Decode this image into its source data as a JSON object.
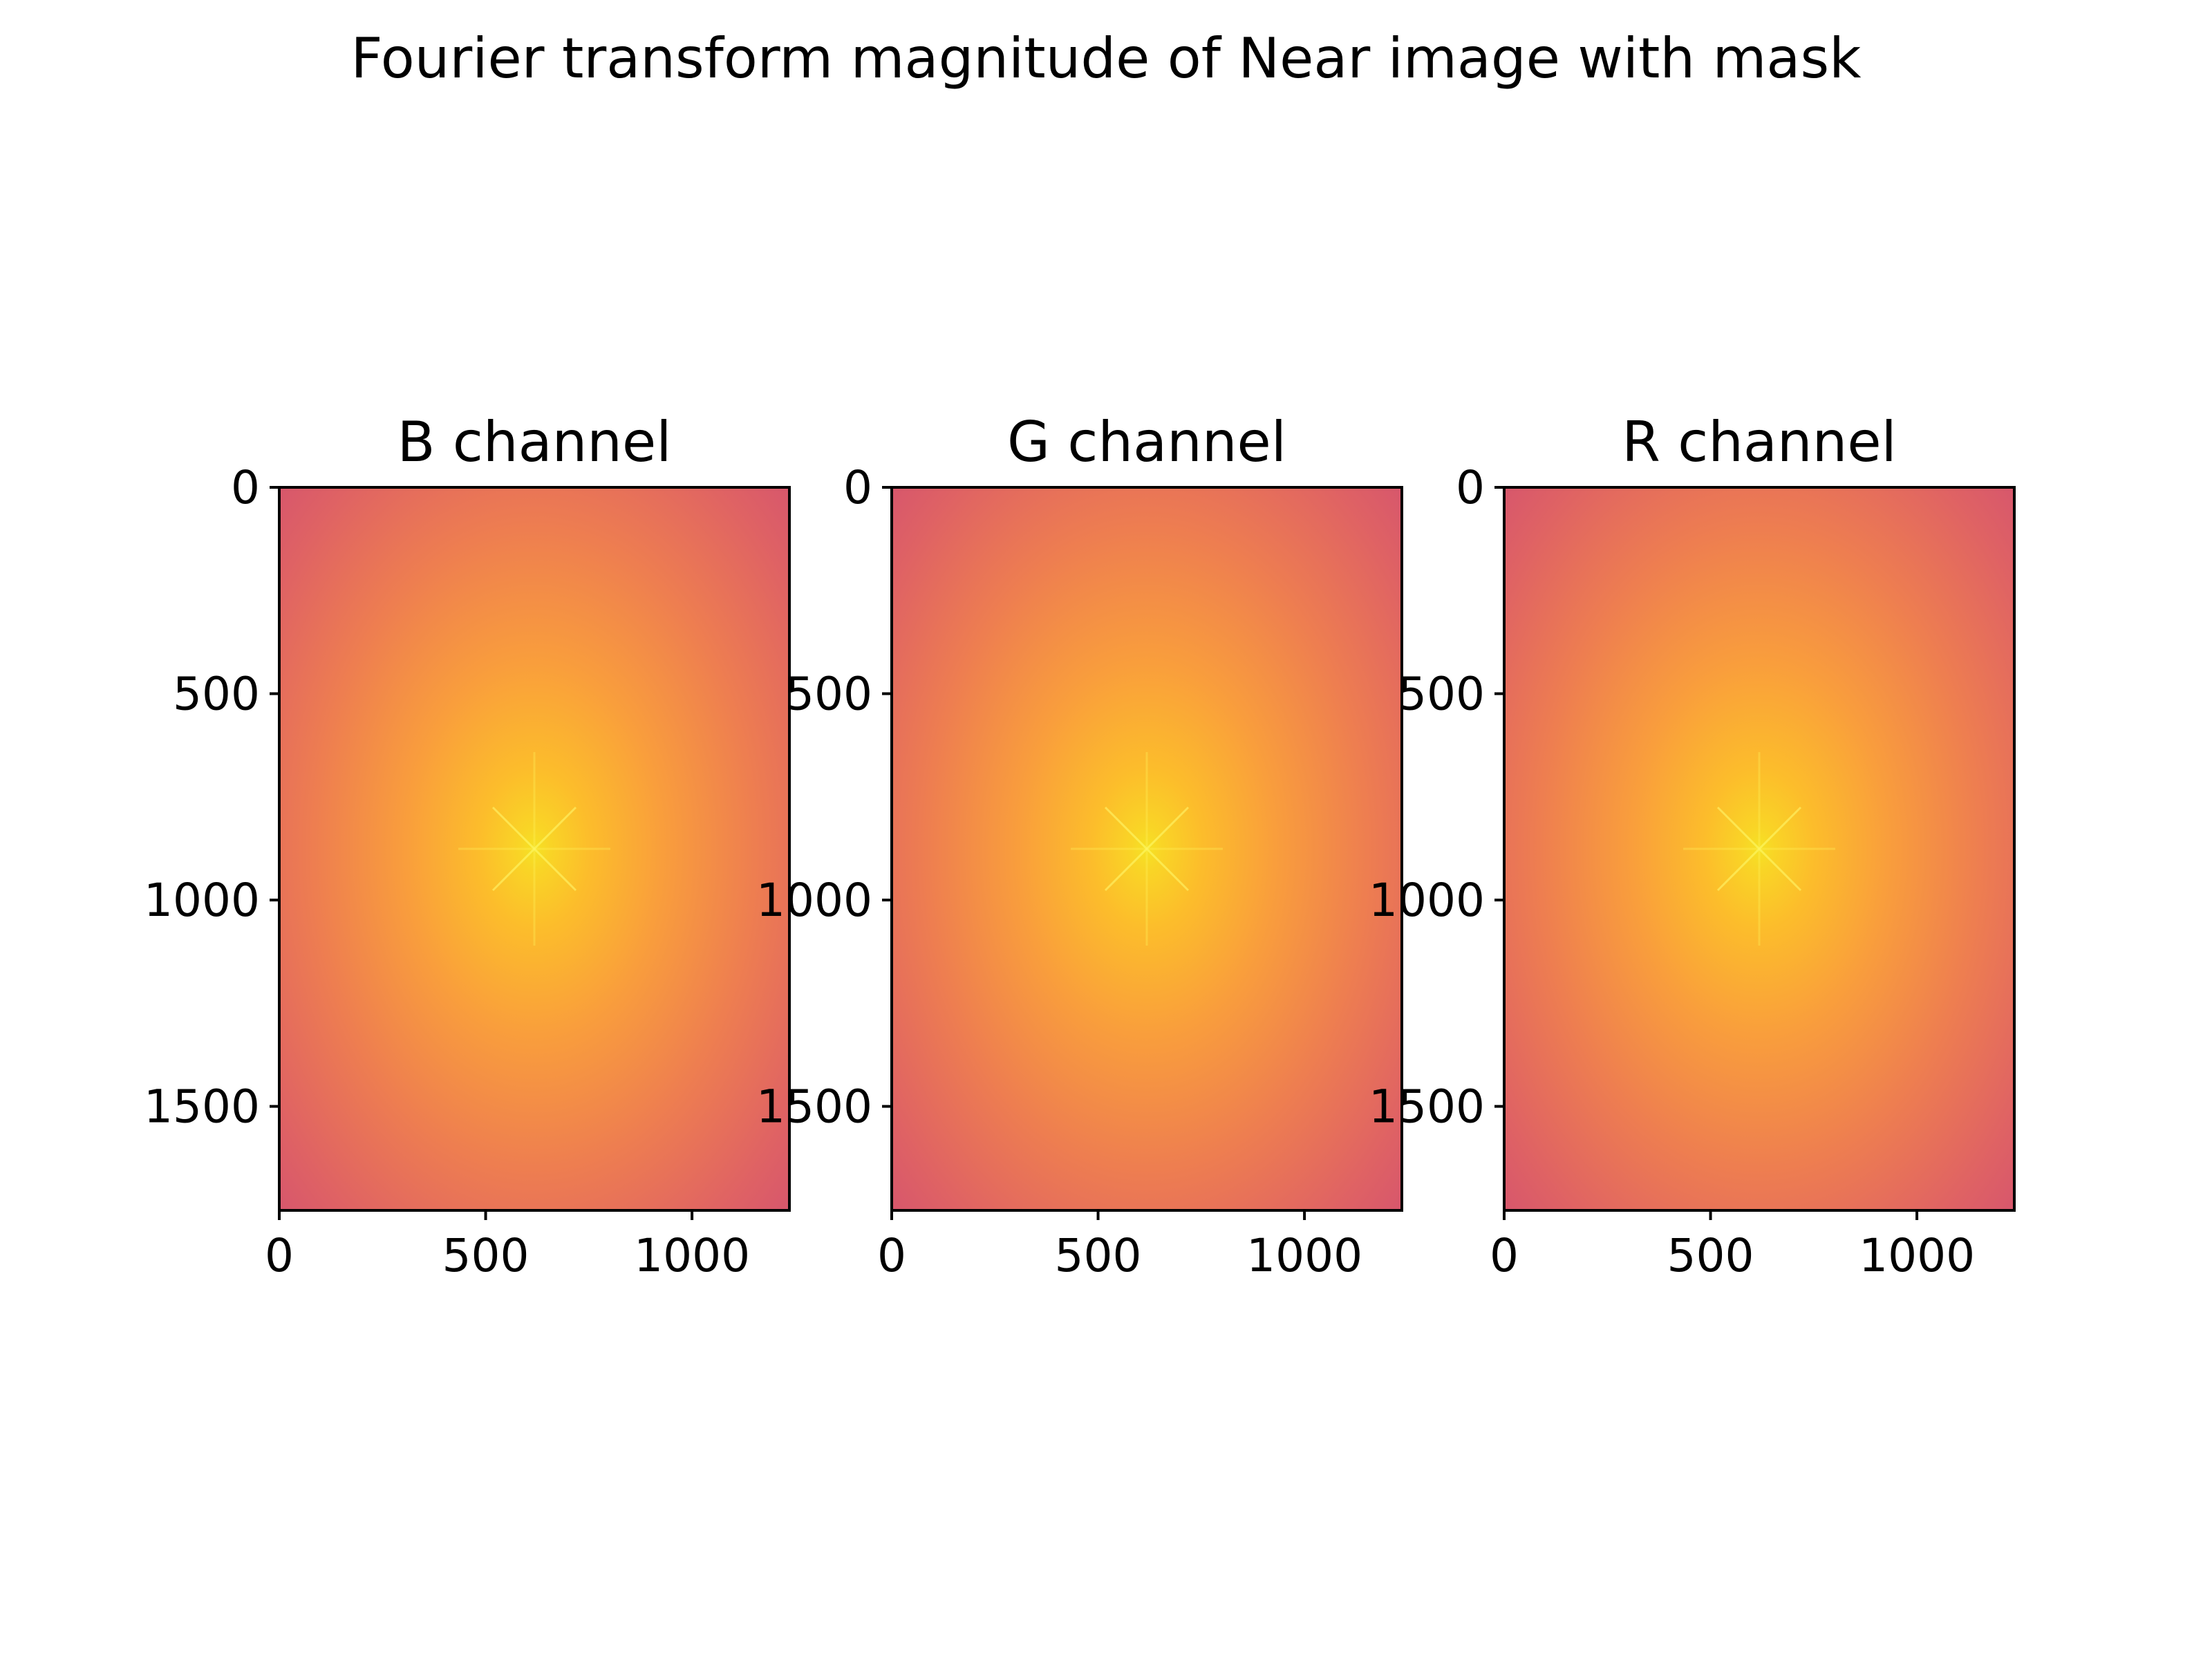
{
  "suptitle": "Fourier transform magnitude of Near image with mask",
  "chart_data": [
    {
      "type": "heatmap",
      "title": "B channel",
      "colormap": "plasma",
      "xlim": [
        0,
        1236
      ],
      "ylim": [
        1752,
        0
      ],
      "x_ticks": [
        0,
        500,
        1000
      ],
      "y_ticks": [
        0,
        500,
        1000,
        1500
      ],
      "peak_center": [
        618,
        876
      ],
      "display_value_range": [
        0.55,
        0.95
      ]
    },
    {
      "type": "heatmap",
      "title": "G channel",
      "colormap": "plasma",
      "xlim": [
        0,
        1236
      ],
      "ylim": [
        1752,
        0
      ],
      "x_ticks": [
        0,
        500,
        1000
      ],
      "y_ticks": [
        0,
        500,
        1000,
        1500
      ],
      "peak_center": [
        618,
        876
      ],
      "display_value_range": [
        0.55,
        0.95
      ]
    },
    {
      "type": "heatmap",
      "title": "R channel",
      "colormap": "plasma",
      "xlim": [
        0,
        1236
      ],
      "ylim": [
        1752,
        0
      ],
      "x_ticks": [
        0,
        500,
        1000
      ],
      "y_ticks": [
        0,
        500,
        1000,
        1500
      ],
      "peak_center": [
        618,
        876
      ],
      "display_value_range": [
        0.55,
        0.95
      ]
    }
  ],
  "colors": {
    "plasma_low": "#c03a83",
    "plasma_mid": "#f0824f",
    "plasma_high": "#fbd528"
  }
}
